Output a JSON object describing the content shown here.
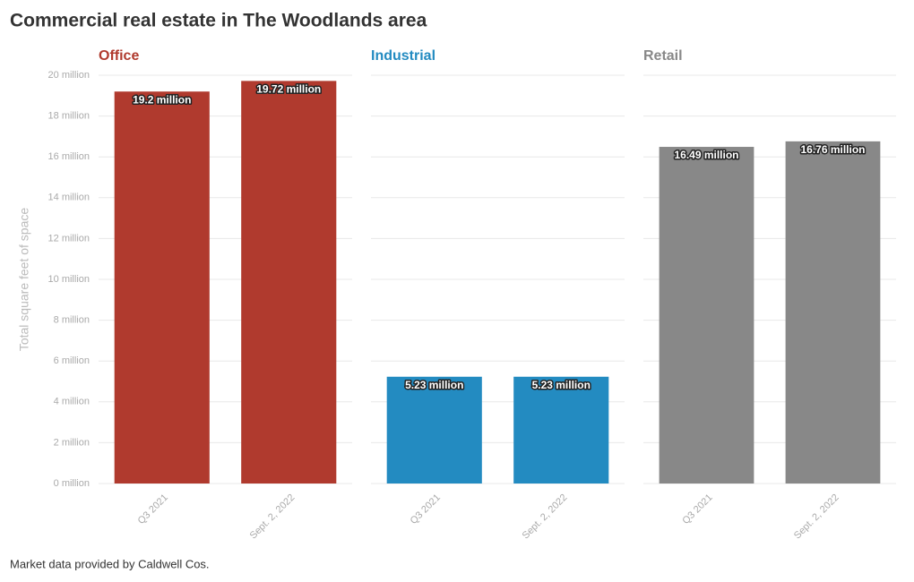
{
  "title": "Commercial real estate in The Woodlands area",
  "footer": "Market data provided by Caldwell Cos.",
  "chart_data": [
    {
      "type": "bar",
      "title": "Office",
      "color": "#b03a2e",
      "ylabel": "Total square feet of space",
      "categories": [
        "Q3 2021",
        "Sept. 2, 2022"
      ],
      "values": [
        19.2,
        19.72
      ],
      "value_labels": [
        "19.2 million",
        "19.72 million"
      ],
      "ylim": [
        0,
        20
      ],
      "yticks": [
        {
          "value": 0,
          "label": "0 million"
        },
        {
          "value": 2,
          "label": "2 million"
        },
        {
          "value": 4,
          "label": "4 million"
        },
        {
          "value": 6,
          "label": "6 million"
        },
        {
          "value": 8,
          "label": "8 million"
        },
        {
          "value": 10,
          "label": "10 million"
        },
        {
          "value": 12,
          "label": "12 million"
        },
        {
          "value": 14,
          "label": "14 million"
        },
        {
          "value": 16,
          "label": "16 million"
        },
        {
          "value": 18,
          "label": "18 million"
        },
        {
          "value": 20,
          "label": "20 million"
        }
      ],
      "grid": true
    },
    {
      "type": "bar",
      "title": "Industrial",
      "color": "#238bc1",
      "categories": [
        "Q3 2021",
        "Sept. 2, 2022"
      ],
      "values": [
        5.23,
        5.23
      ],
      "value_labels": [
        "5.23 million",
        "5.23 million"
      ],
      "ylim": [
        0,
        20
      ],
      "yticks": [
        0,
        2,
        4,
        6,
        8,
        10,
        12,
        14,
        16,
        18,
        20
      ],
      "grid": true
    },
    {
      "type": "bar",
      "title": "Retail",
      "color": "#888888",
      "categories": [
        "Q3 2021",
        "Sept. 2, 2022"
      ],
      "values": [
        16.49,
        16.76
      ],
      "value_labels": [
        "16.49 million",
        "16.76 million"
      ],
      "ylim": [
        0,
        20
      ],
      "yticks": [
        0,
        2,
        4,
        6,
        8,
        10,
        12,
        14,
        16,
        18,
        20
      ],
      "grid": true
    }
  ]
}
